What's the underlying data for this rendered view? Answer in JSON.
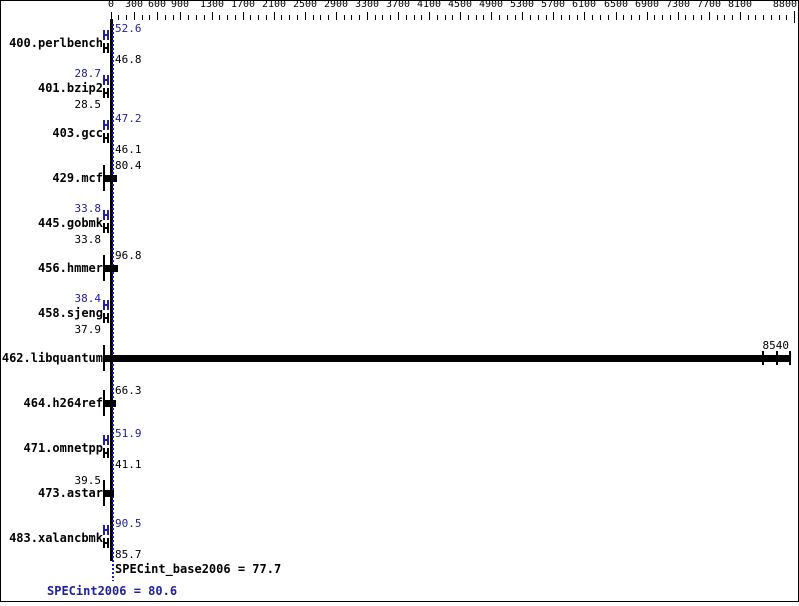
{
  "chart_data": {
    "type": "bar",
    "orientation": "horizontal",
    "title": "",
    "x_axis": {
      "min": 0,
      "max": 8800,
      "minor_tick_interval": 100,
      "major_tick_values": [
        0,
        300,
        600,
        900,
        1300,
        1700,
        2100,
        2500,
        2900,
        3300,
        3700,
        4100,
        4500,
        4900,
        5300,
        5700,
        6100,
        6500,
        6900,
        7300,
        7700,
        8100,
        8800
      ]
    },
    "rows": [
      {
        "name": "400.perlbench",
        "peak": 52.6,
        "base": 46.8
      },
      {
        "name": "401.bzip2",
        "peak": 28.7,
        "base": 28.5
      },
      {
        "name": "403.gcc",
        "peak": 47.2,
        "base": 46.1
      },
      {
        "name": "429.mcf",
        "single": 80.4
      },
      {
        "name": "445.gobmk",
        "peak": 33.8,
        "base": 33.8
      },
      {
        "name": "456.hmmer",
        "single": 96.8
      },
      {
        "name": "458.sjeng",
        "peak": 38.4,
        "base": 37.9
      },
      {
        "name": "462.libquantum",
        "single": 8540
      },
      {
        "name": "464.h264ref",
        "single": 66.3
      },
      {
        "name": "471.omnetpp",
        "peak": 51.9,
        "base": 41.1
      },
      {
        "name": "473.astar",
        "single": 39.5
      },
      {
        "name": "483.xalancbmk",
        "peak": 90.5,
        "base": 85.7
      }
    ],
    "means": {
      "SPECint_base2006": 77.7,
      "SPECint2006": 80.6
    },
    "legend": null,
    "grid": false
  },
  "footer": {
    "base_mean_text": "SPECint_base2006 = 77.7",
    "peak_mean_text": "SPECint2006 = 80.6"
  },
  "colors": {
    "peak": "#2020a0",
    "base": "#000000",
    "mean_line": "#2020a0"
  }
}
